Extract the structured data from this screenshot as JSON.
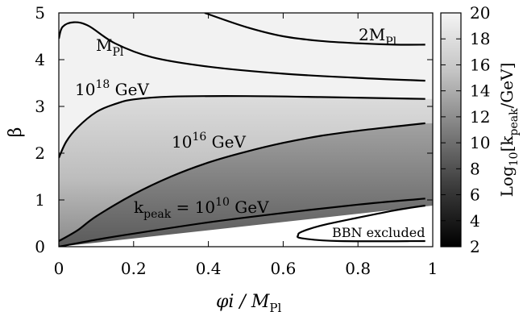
{
  "chart_data": {
    "type": "heatmap",
    "title": "",
    "x_range": [
      0,
      1
    ],
    "y_range": [
      0,
      5
    ],
    "colorbar_range": [
      2,
      20
    ],
    "colorbar_scale": "grayscale: black = 2, white = 20",
    "x_ticks": [
      "0",
      "0.2",
      "0.4",
      "0.6",
      "0.8",
      "1"
    ],
    "y_ticks": [
      "0",
      "1",
      "2",
      "3",
      "4",
      "5"
    ],
    "colorbar_ticks": [
      "2",
      "4",
      "6",
      "8",
      "10",
      "12",
      "14",
      "16",
      "18",
      "20"
    ],
    "xlabel": {
      "main": "φi / M",
      "sub": "Pl"
    },
    "ylabel": "β",
    "colorbar_label": {
      "a": "Log",
      "b": "10",
      "c": "[k",
      "d": "peak",
      "e": "/GeV]"
    },
    "contour_labels": {
      "mpl": {
        "main": "M",
        "sub": "Pl"
      },
      "two_mpl": {
        "main": "2M",
        "sub": "Pl"
      },
      "e18": {
        "base": "10",
        "exp": "18",
        "unit": " GeV"
      },
      "e16": {
        "base": "10",
        "exp": "16",
        "unit": " GeV"
      },
      "e10": {
        "pre": "k",
        "presub": "peak",
        "eq": " = 10",
        "exp": "10",
        "unit": " GeV"
      },
      "bbn": "BBN excluded"
    },
    "contours": [
      {
        "id": "2M_Pl",
        "points": [
          [
            0.39,
            5.0
          ],
          [
            0.5,
            4.7
          ],
          [
            0.6,
            4.5
          ],
          [
            0.7,
            4.4
          ],
          [
            0.8,
            4.35
          ],
          [
            0.9,
            4.32
          ],
          [
            0.98,
            4.32
          ]
        ]
      },
      {
        "id": "M_Pl",
        "points": [
          [
            0.0,
            4.45
          ],
          [
            0.01,
            4.7
          ],
          [
            0.04,
            4.8
          ],
          [
            0.08,
            4.72
          ],
          [
            0.15,
            4.35
          ],
          [
            0.25,
            4.05
          ],
          [
            0.4,
            3.85
          ],
          [
            0.6,
            3.7
          ],
          [
            0.8,
            3.61
          ],
          [
            0.98,
            3.55
          ]
        ]
      },
      {
        "id": "1e18_GeV",
        "points": [
          [
            0.0,
            1.9
          ],
          [
            0.02,
            2.25
          ],
          [
            0.05,
            2.55
          ],
          [
            0.1,
            2.88
          ],
          [
            0.15,
            3.05
          ],
          [
            0.2,
            3.15
          ],
          [
            0.3,
            3.21
          ],
          [
            0.5,
            3.22
          ],
          [
            0.7,
            3.2
          ],
          [
            0.98,
            3.16
          ]
        ]
      },
      {
        "id": "1e16_GeV",
        "points": [
          [
            0.0,
            0.12
          ],
          [
            0.05,
            0.35
          ],
          [
            0.1,
            0.65
          ],
          [
            0.2,
            1.12
          ],
          [
            0.3,
            1.5
          ],
          [
            0.4,
            1.8
          ],
          [
            0.5,
            2.03
          ],
          [
            0.6,
            2.22
          ],
          [
            0.7,
            2.37
          ],
          [
            0.8,
            2.48
          ],
          [
            0.9,
            2.57
          ],
          [
            0.98,
            2.64
          ]
        ]
      },
      {
        "id": "1e10_GeV",
        "points": [
          [
            0.0,
            0.0
          ],
          [
            0.1,
            0.15
          ],
          [
            0.2,
            0.28
          ],
          [
            0.4,
            0.52
          ],
          [
            0.6,
            0.72
          ],
          [
            0.8,
            0.9
          ],
          [
            0.98,
            1.03
          ]
        ]
      },
      {
        "id": "BBN",
        "points": [
          [
            0.98,
            0.88
          ],
          [
            0.9,
            0.78
          ],
          [
            0.8,
            0.62
          ],
          [
            0.7,
            0.45
          ],
          [
            0.65,
            0.32
          ],
          [
            0.64,
            0.25
          ],
          [
            0.65,
            0.18
          ],
          [
            0.75,
            0.12
          ],
          [
            0.98,
            0.12
          ]
        ]
      }
    ],
    "grid": false,
    "legend": "colorbar on right"
  }
}
